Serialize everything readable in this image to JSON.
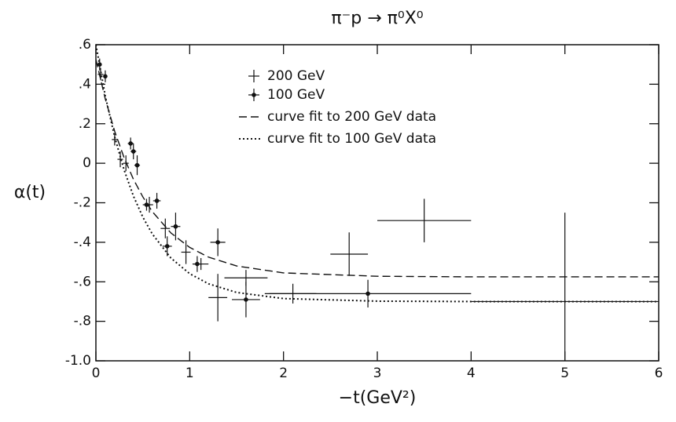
{
  "chart_data": {
    "type": "scatter",
    "title": "π⁻p → π⁰X⁰",
    "x_label": "−t(GeV²)",
    "y_label": "α(t)",
    "xlim": [
      0,
      6
    ],
    "ylim": [
      -1.0,
      0.6
    ],
    "xticks": [
      0,
      1,
      2,
      3,
      4,
      5,
      6
    ],
    "yticks": [
      {
        "value": 0.6,
        "label": ".6"
      },
      {
        "value": 0.4,
        "label": ".4"
      },
      {
        "value": 0.2,
        "label": ".2"
      },
      0,
      {
        "value": -0.2,
        "label": "-.2"
      },
      {
        "value": -0.4,
        "label": "-.4"
      },
      {
        "value": -0.6,
        "label": "-.6"
      },
      {
        "value": -0.8,
        "label": "-.8"
      },
      {
        "value": -1.0,
        "label": "-1.0"
      }
    ],
    "legend": "upper center",
    "series": [
      {
        "name": "200 GeV",
        "color": "#111111",
        "marker": "plus",
        "x": [
          0.05,
          0.2,
          0.26,
          0.32,
          0.57,
          0.74,
          0.96,
          1.12,
          1.3,
          1.6,
          2.1,
          2.7,
          3.5,
          5.0
        ],
        "values": [
          0.45,
          0.12,
          0.02,
          0.0,
          -0.21,
          -0.33,
          -0.45,
          -0.51,
          -0.68,
          -0.58,
          -0.66,
          -0.46,
          -0.29,
          -0.7
        ],
        "xerr": [
          0.03,
          0.03,
          0.03,
          0.03,
          0.04,
          0.05,
          0.05,
          0.08,
          0.1,
          0.23,
          0.25,
          0.2,
          0.5,
          1.0
        ],
        "yerr": [
          0.03,
          0.03,
          0.04,
          0.04,
          0.04,
          0.05,
          0.06,
          0.03,
          0.12,
          0.04,
          0.05,
          0.11,
          0.11,
          0.45
        ]
      },
      {
        "name": "100 GeV",
        "color": "#111111",
        "marker": "dot",
        "x": [
          0.04,
          0.1,
          0.37,
          0.4,
          0.44,
          0.54,
          0.65,
          0.76,
          0.85,
          1.08,
          1.3,
          1.6,
          2.9
        ],
        "values": [
          0.5,
          0.44,
          0.1,
          0.06,
          -0.01,
          -0.21,
          -0.19,
          -0.42,
          -0.32,
          -0.51,
          -0.4,
          -0.69,
          -0.66
        ],
        "xerr": [
          0.02,
          0.02,
          0.03,
          0.03,
          0.03,
          0.04,
          0.04,
          0.05,
          0.05,
          0.05,
          0.08,
          0.15,
          1.1
        ],
        "yerr": [
          0.03,
          0.03,
          0.03,
          0.04,
          0.05,
          0.03,
          0.04,
          0.05,
          0.07,
          0.04,
          0.07,
          0.09,
          0.07
        ]
      }
    ],
    "curves": [
      {
        "name": "curve fit to 200 GeV data",
        "style": "dashed",
        "color": "#111111",
        "x": [
          0,
          0.1,
          0.2,
          0.3,
          0.4,
          0.5,
          0.6,
          0.8,
          1.0,
          1.2,
          1.5,
          2,
          3,
          4,
          5,
          6
        ],
        "y": [
          0.525,
          0.326,
          0.162,
          0.029,
          -0.081,
          -0.17,
          -0.244,
          -0.353,
          -0.426,
          -0.475,
          -0.52,
          -0.555,
          -0.572,
          -0.575,
          -0.575,
          -0.575
        ]
      },
      {
        "name": "curve fit to 100 GeV data",
        "style": "dotted",
        "color": "#111111",
        "x": [
          0,
          0.1,
          0.2,
          0.3,
          0.4,
          0.5,
          0.6,
          0.8,
          1.0,
          1.2,
          1.5,
          2,
          3,
          4,
          5,
          6
        ],
        "y": [
          0.6,
          0.341,
          0.134,
          -0.033,
          -0.166,
          -0.272,
          -0.357,
          -0.48,
          -0.559,
          -0.61,
          -0.654,
          -0.685,
          -0.698,
          -0.7,
          -0.7,
          -0.7
        ]
      }
    ]
  }
}
